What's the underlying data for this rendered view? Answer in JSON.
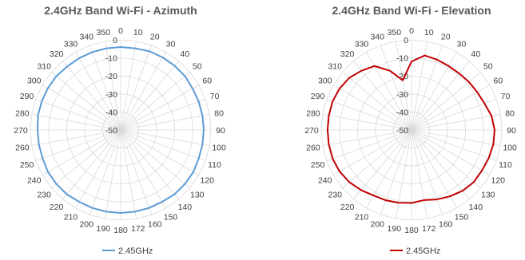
{
  "chart_data": [
    {
      "type": "radar",
      "title": "2.4GHz Band Wi-Fi - Azimuth",
      "angle_labels": [
        "0",
        "10",
        "20",
        "30",
        "40",
        "50",
        "60",
        "70",
        "80",
        "90",
        "100",
        "110",
        "120",
        "130",
        "140",
        "150",
        "160",
        "172",
        "180",
        "190",
        "200",
        "210",
        "220",
        "230",
        "240",
        "250",
        "260",
        "270",
        "280",
        "290",
        "300",
        "310",
        "320",
        "330",
        "340",
        "350"
      ],
      "radial_labels": [
        "0",
        "-10",
        "-20",
        "-30",
        "-40",
        "-50"
      ],
      "rlim": [
        -50,
        0
      ],
      "legend_position": "bottom",
      "series": [
        {
          "name": "2.45GHz",
          "color": "#5b9bd5",
          "values": [
            -4,
            -4,
            -3.5,
            -3.5,
            -3.5,
            -3.5,
            -4,
            -4,
            -4,
            -4,
            -4,
            -4,
            -3.5,
            -3.5,
            -3.5,
            -4,
            -4,
            -4,
            -4,
            -4,
            -4,
            -4,
            -3.5,
            -3.5,
            -3.5,
            -4,
            -4,
            -4,
            -3.5,
            -3.5,
            -3.5,
            -3.5,
            -4,
            -4,
            -4,
            -4
          ]
        }
      ]
    },
    {
      "type": "radar",
      "title": "2.4GHz Band Wi-Fi - Elevation",
      "angle_labels": [
        "0",
        "10",
        "20",
        "30",
        "40",
        "50",
        "60",
        "70",
        "80",
        "90",
        "100",
        "110",
        "120",
        "130",
        "140",
        "150",
        "160",
        "172",
        "180",
        "190",
        "200",
        "210",
        "220",
        "230",
        "240",
        "250",
        "260",
        "270",
        "280",
        "290",
        "300",
        "310",
        "320",
        "330",
        "340",
        "350"
      ],
      "radial_labels": [
        "0",
        "-10",
        "-20",
        "-30",
        "-40",
        "-50"
      ],
      "rlim": [
        -50,
        0
      ],
      "legend_position": "bottom",
      "series": [
        {
          "name": "2.45GHz",
          "color": "#c00000",
          "values": [
            -12,
            -8,
            -8.5,
            -9,
            -9,
            -8.5,
            -8,
            -7,
            -5,
            -4,
            -4,
            -4.5,
            -5,
            -5,
            -6,
            -7.5,
            -9,
            -10.5,
            -9.5,
            -9,
            -8.5,
            -8,
            -6.5,
            -5,
            -4,
            -3.5,
            -3.5,
            -3.5,
            -3.5,
            -3.5,
            -4,
            -5,
            -7,
            -9,
            -15,
            -22
          ]
        }
      ]
    }
  ]
}
